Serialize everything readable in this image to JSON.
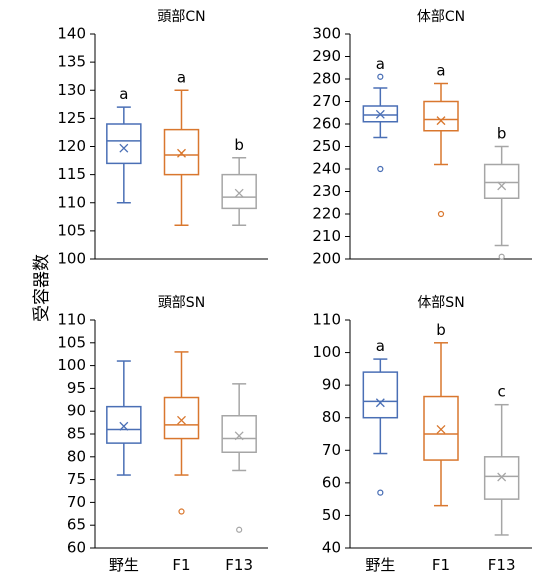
{
  "figure": {
    "ylabel": "受容器数",
    "series_colors": {
      "野生": "#4a6fb5",
      "F1": "#d9772e",
      "F13": "#a6a6a6"
    }
  },
  "chart_data": [
    {
      "type": "box",
      "title": "頭部CN",
      "categories": [
        "野生",
        "F1",
        "F13"
      ],
      "ylim": [
        100,
        140
      ],
      "yticks": [
        100,
        105,
        110,
        115,
        120,
        125,
        130,
        135,
        140
      ],
      "boxes": [
        {
          "category": "野生",
          "min": 110,
          "q1": 117,
          "median": 121,
          "q3": 124,
          "max": 127,
          "mean": 119.7,
          "outliers": [],
          "letter": "a"
        },
        {
          "category": "F1",
          "min": 106,
          "q1": 115,
          "median": 118.5,
          "q3": 123,
          "max": 130,
          "mean": 118.8,
          "outliers": [],
          "letter": "a"
        },
        {
          "category": "F13",
          "min": 106,
          "q1": 109,
          "median": 111,
          "q3": 115,
          "max": 118,
          "mean": 111.7,
          "outliers": [],
          "letter": "b"
        }
      ]
    },
    {
      "type": "box",
      "title": "体部CN",
      "categories": [
        "野生",
        "F1",
        "F13"
      ],
      "ylim": [
        200,
        300
      ],
      "yticks": [
        200,
        210,
        220,
        230,
        240,
        250,
        260,
        270,
        280,
        290,
        300
      ],
      "boxes": [
        {
          "category": "野生",
          "min": 254,
          "q1": 261,
          "median": 264,
          "q3": 268,
          "max": 276,
          "mean": 264.3,
          "outliers": [
            240,
            281
          ],
          "letter": "a"
        },
        {
          "category": "F1",
          "min": 242,
          "q1": 257,
          "median": 262,
          "q3": 270,
          "max": 278,
          "mean": 261.5,
          "outliers": [
            220
          ],
          "letter": "a"
        },
        {
          "category": "F13",
          "min": 206,
          "q1": 227,
          "median": 234,
          "q3": 242,
          "max": 250,
          "mean": 232.5,
          "outliers": [
            201
          ],
          "letter": "b"
        }
      ]
    },
    {
      "type": "box",
      "title": "頭部SN",
      "categories": [
        "野生",
        "F1",
        "F13"
      ],
      "ylim": [
        60,
        110
      ],
      "yticks": [
        60,
        65,
        70,
        75,
        80,
        85,
        90,
        95,
        100,
        105,
        110
      ],
      "boxes": [
        {
          "category": "野生",
          "min": 76,
          "q1": 83,
          "median": 86,
          "q3": 91,
          "max": 101,
          "mean": 86.7,
          "outliers": [],
          "letter": ""
        },
        {
          "category": "F1",
          "min": 76,
          "q1": 84,
          "median": 87,
          "q3": 93,
          "max": 103,
          "mean": 88,
          "outliers": [
            68
          ],
          "letter": ""
        },
        {
          "category": "F13",
          "min": 77,
          "q1": 81,
          "median": 84,
          "q3": 89,
          "max": 96,
          "mean": 84.6,
          "outliers": [
            64
          ],
          "letter": ""
        }
      ]
    },
    {
      "type": "box",
      "title": "体部SN",
      "categories": [
        "野生",
        "F1",
        "F13"
      ],
      "ylim": [
        40,
        110
      ],
      "yticks": [
        40,
        50,
        60,
        70,
        80,
        90,
        100,
        110
      ],
      "boxes": [
        {
          "category": "野生",
          "min": 69,
          "q1": 80,
          "median": 85,
          "q3": 94,
          "max": 98,
          "mean": 84.6,
          "outliers": [
            57
          ],
          "letter": "a"
        },
        {
          "category": "F1",
          "min": 53,
          "q1": 67,
          "median": 75,
          "q3": 86.5,
          "max": 103,
          "mean": 76.4,
          "outliers": [],
          "letter": "b"
        },
        {
          "category": "F13",
          "min": 44,
          "q1": 55,
          "median": 62,
          "q3": 68,
          "max": 84,
          "mean": 61.8,
          "outliers": [],
          "letter": "c"
        }
      ]
    }
  ]
}
